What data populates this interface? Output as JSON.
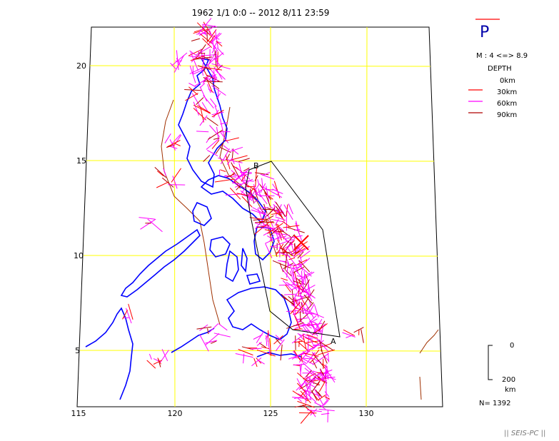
{
  "title": "1962 1/1 0:0 -- 2012 8/11 23:59",
  "map": {
    "lon_ticks": [
      {
        "lon": 115,
        "label": "115"
      },
      {
        "lon": 120,
        "label": "120"
      },
      {
        "lon": 125,
        "label": "125"
      },
      {
        "lon": 130,
        "label": "130"
      }
    ],
    "lat_ticks": [
      {
        "lat": 20,
        "label": "20"
      },
      {
        "lat": 15,
        "label": "15"
      },
      {
        "lat": 10,
        "label": "10"
      },
      {
        "lat": 5,
        "label": "5"
      }
    ],
    "cross_section": {
      "start_label": "A",
      "end_label": "B"
    }
  },
  "legend": {
    "mechanism_letter": "P",
    "magnitude": "M : 4 <=> 8.9",
    "depth_title": "DEPTH",
    "depths": [
      {
        "label": "0km",
        "color": "#ff0000"
      },
      {
        "label": "30km",
        "color": "#ff0000"
      },
      {
        "label": "60km",
        "color": "#ff00ff"
      },
      {
        "label": "90km",
        "color": "#b00000"
      }
    ],
    "scale_top": "0",
    "scale_bottom": "200",
    "scale_unit": "km",
    "count": "N= 1392"
  },
  "footer": "|| SEIS-PC ||",
  "colors": {
    "grid": "#ffff00",
    "coast": "#0000ff",
    "trench": "#a03000",
    "shallow": "#ff0000",
    "mid": "#ff00ff",
    "deep": "#b00000"
  }
}
